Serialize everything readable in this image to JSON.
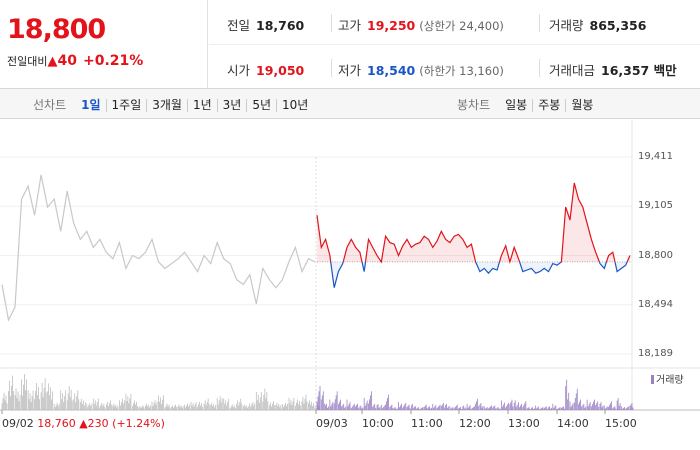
{
  "quote": {
    "price": "18,800",
    "change_label": "전일대비",
    "change_symbol": "▲",
    "change_value": "40",
    "change_pct": "+0.21%"
  },
  "stats": {
    "prev_close": {
      "label": "전일",
      "value": "18,760"
    },
    "high": {
      "label": "고가",
      "value": "19,250",
      "sub": "(상한가 24,400)"
    },
    "volume": {
      "label": "거래량",
      "value": "865,356"
    },
    "open": {
      "label": "시가",
      "value": "19,050"
    },
    "low": {
      "label": "저가",
      "value": "18,540",
      "sub": "(하한가 13,160)"
    },
    "turnover": {
      "label": "거래대금",
      "value": "16,357 백만"
    }
  },
  "period_tabs": {
    "label": "선차트",
    "items": [
      "1일",
      "1주일",
      "3개월",
      "1년",
      "3년",
      "5년",
      "10년"
    ],
    "active": "1일"
  },
  "candle_tabs": {
    "label": "봉차트",
    "items": [
      "일봉",
      "주봉",
      "월봉"
    ]
  },
  "colors": {
    "up": "#e2131a",
    "down": "#1a55c8",
    "prev_day": "#c8c8c8",
    "volume": "#9a80c4",
    "volume_prev": "#bdbdbd"
  },
  "chart_data": {
    "type": "line",
    "yticks": [
      "19,411",
      "19,105",
      "18,800",
      "18,494",
      "18,189"
    ],
    "ylim": [
      18189,
      19411
    ],
    "reference": 18760,
    "xticks": [
      "09/03",
      "10:00",
      "11:00",
      "12:00",
      "13:00",
      "14:00",
      "15:00"
    ],
    "volume_legend": "거래량",
    "prev_day_label": {
      "date": "09/02",
      "close": "18,760",
      "symbol": "▲",
      "change": "230",
      "pct": "(+1.24%)"
    },
    "prev_day_series": [
      18620,
      18400,
      18480,
      19150,
      19230,
      19050,
      19300,
      19100,
      19150,
      18950,
      19200,
      19000,
      18900,
      18950,
      18850,
      18900,
      18820,
      18780,
      18880,
      18720,
      18800,
      18780,
      18820,
      18900,
      18760,
      18720,
      18750,
      18780,
      18820,
      18760,
      18700,
      18800,
      18750,
      18880,
      18780,
      18750,
      18650,
      18620,
      18680,
      18500,
      18720,
      18650,
      18600,
      18650,
      18760,
      18850,
      18700,
      18780,
      18760
    ],
    "today_series": [
      19050,
      18850,
      18900,
      18800,
      18600,
      18700,
      18750,
      18850,
      18900,
      18850,
      18820,
      18700,
      18900,
      18850,
      18800,
      18760,
      18920,
      18880,
      18870,
      18800,
      18860,
      18900,
      18850,
      18870,
      18880,
      18920,
      18900,
      18850,
      18890,
      18950,
      18900,
      18880,
      18920,
      18930,
      18900,
      18850,
      18870,
      18760,
      18700,
      18720,
      18690,
      18720,
      18710,
      18800,
      18860,
      18760,
      18850,
      18780,
      18700,
      18710,
      18720,
      18690,
      18700,
      18720,
      18700,
      18750,
      18740,
      18760,
      19100,
      19020,
      19250,
      19150,
      19100,
      19000,
      18900,
      18820,
      18750,
      18720,
      18800,
      18820,
      18700,
      18720,
      18740,
      18800
    ]
  }
}
